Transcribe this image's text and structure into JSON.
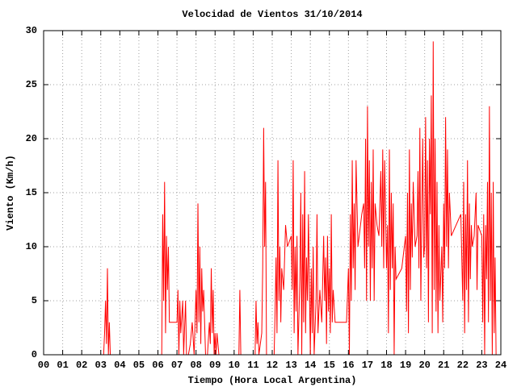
{
  "chart_data": {
    "type": "line",
    "title": "Velocidad de Vientos 31/10/2014",
    "x_label": "Tiempo (Hora Local Argentina)",
    "y_label": "Viento (Km/h)",
    "x": [
      0,
      3.15,
      3.2,
      3.25,
      3.3,
      3.35,
      3.4,
      3.45,
      3.5,
      6.2,
      6.25,
      6.3,
      6.35,
      6.4,
      6.45,
      6.5,
      6.55,
      6.6,
      7.0,
      7.05,
      7.1,
      7.15,
      7.2,
      7.3,
      7.35,
      7.45,
      7.5,
      7.6,
      7.7,
      7.8,
      7.9,
      8.0,
      8.05,
      8.1,
      8.15,
      8.2,
      8.25,
      8.3,
      8.35,
      8.4,
      8.5,
      8.6,
      8.7,
      8.75,
      8.8,
      8.85,
      8.9,
      8.95,
      9.0,
      9.05,
      9.1,
      9.2,
      10.25,
      10.3,
      10.35,
      11.1,
      11.15,
      11.2,
      11.25,
      11.3,
      11.45,
      11.5,
      11.55,
      11.6,
      11.65,
      11.7,
      12.1,
      12.15,
      12.2,
      12.25,
      12.3,
      12.35,
      12.4,
      12.45,
      12.5,
      12.6,
      12.7,
      12.8,
      13.0,
      13.05,
      13.1,
      13.15,
      13.2,
      13.25,
      13.3,
      13.35,
      13.45,
      13.5,
      13.55,
      13.6,
      13.65,
      13.7,
      13.75,
      13.8,
      13.85,
      13.9,
      14.0,
      14.05,
      14.1,
      14.15,
      14.2,
      14.3,
      14.35,
      14.4,
      14.5,
      14.6,
      14.7,
      14.75,
      14.8,
      14.85,
      14.9,
      14.95,
      15.0,
      15.05,
      15.1,
      15.15,
      15.2,
      15.3,
      15.9,
      16.0,
      16.05,
      16.1,
      16.15,
      16.2,
      16.25,
      16.3,
      16.35,
      16.4,
      16.5,
      16.7,
      16.8,
      16.85,
      16.9,
      16.95,
      17.0,
      17.05,
      17.1,
      17.15,
      17.2,
      17.25,
      17.3,
      17.35,
      17.4,
      17.5,
      17.6,
      17.7,
      17.75,
      17.8,
      17.85,
      17.9,
      18.0,
      18.05,
      18.1,
      18.15,
      18.2,
      18.25,
      18.3,
      18.35,
      18.4,
      18.45,
      18.5,
      18.8,
      19.0,
      19.05,
      19.1,
      19.15,
      19.2,
      19.25,
      19.3,
      19.35,
      19.4,
      19.5,
      19.6,
      19.65,
      19.7,
      19.75,
      19.8,
      19.85,
      19.9,
      19.95,
      20.0,
      20.05,
      20.1,
      20.15,
      20.2,
      20.25,
      20.3,
      20.35,
      20.4,
      20.45,
      20.5,
      20.55,
      20.6,
      20.65,
      20.7,
      20.75,
      20.8,
      20.9,
      20.95,
      21.0,
      21.05,
      21.1,
      21.15,
      21.2,
      21.25,
      21.3,
      21.4,
      21.9,
      22.0,
      22.05,
      22.1,
      22.15,
      22.2,
      22.25,
      22.3,
      22.35,
      22.4,
      22.45,
      22.5,
      22.6,
      22.7,
      22.75,
      22.8,
      23.0,
      23.05,
      23.1,
      23.15,
      23.2,
      23.25,
      23.3,
      23.35,
      23.4,
      23.45,
      23.5,
      23.55,
      23.6,
      23.65,
      23.7,
      23.75
    ],
    "series": [
      {
        "color": "#ff0000",
        "values": [
          0,
          0,
          2,
          5,
          1,
          8,
          0,
          3,
          0,
          0,
          13,
          5,
          16,
          2,
          11,
          6,
          10,
          3,
          3,
          6,
          0,
          5,
          2,
          5,
          0,
          5,
          0,
          0,
          1,
          3,
          0,
          6,
          2,
          14,
          3,
          10,
          1,
          8,
          4,
          6,
          0,
          0,
          3,
          1,
          8,
          2,
          6,
          0,
          2,
          0,
          2,
          0,
          0,
          6,
          0,
          0,
          5,
          1,
          3,
          0,
          2,
          8,
          21,
          10,
          16,
          0,
          0,
          4,
          9,
          2,
          18,
          5,
          10,
          3,
          8,
          6,
          12,
          10,
          11,
          6,
          18,
          2,
          10,
          4,
          11,
          0,
          7,
          15,
          0,
          13,
          3,
          17,
          2,
          9,
          5,
          13,
          0,
          8,
          2,
          10,
          0,
          5,
          13,
          2,
          6,
          3,
          11,
          5,
          9,
          1,
          11,
          4,
          8,
          2,
          13,
          3,
          6,
          3,
          3,
          8,
          0,
          13,
          5,
          18,
          8,
          14,
          6,
          18,
          10,
          13,
          14,
          8,
          20,
          5,
          23,
          10,
          18,
          5,
          16,
          8,
          19,
          5,
          14,
          12,
          11,
          17,
          10,
          19,
          8,
          18,
          8,
          12,
          2,
          19,
          6,
          15,
          8,
          14,
          0,
          10,
          7,
          8,
          11,
          4,
          15,
          2,
          19,
          6,
          14,
          9,
          16,
          10,
          11,
          17,
          8,
          21,
          5,
          13,
          20,
          9,
          10,
          22,
          8,
          18,
          3,
          20,
          13,
          24,
          2,
          29,
          6,
          20,
          4,
          16,
          2,
          12,
          5,
          10,
          3,
          14,
          8,
          22,
          10,
          19,
          8,
          15,
          11,
          13,
          5,
          16,
          2,
          13,
          6,
          18,
          3,
          14,
          7,
          12,
          10,
          11,
          15,
          6,
          12,
          11,
          3,
          13,
          0,
          12,
          7,
          16,
          3,
          23,
          5,
          15,
          0,
          16,
          2,
          9,
          0
        ]
      }
    ],
    "xlim": [
      0,
      24
    ],
    "ylim": [
      0,
      30
    ],
    "xticks": [
      {
        "value": 0,
        "label": "00"
      },
      {
        "value": 1,
        "label": "01"
      },
      {
        "value": 2,
        "label": "02"
      },
      {
        "value": 3,
        "label": "03"
      },
      {
        "value": 4,
        "label": "04"
      },
      {
        "value": 5,
        "label": "05"
      },
      {
        "value": 6,
        "label": "06"
      },
      {
        "value": 7,
        "label": "07"
      },
      {
        "value": 8,
        "label": "08"
      },
      {
        "value": 9,
        "label": "09"
      },
      10,
      11,
      12,
      13,
      14,
      15,
      16,
      17,
      18,
      19,
      20,
      21,
      22,
      23,
      24
    ],
    "yticks": [
      0,
      5,
      10,
      15,
      20,
      25,
      30
    ],
    "grid": true
  }
}
